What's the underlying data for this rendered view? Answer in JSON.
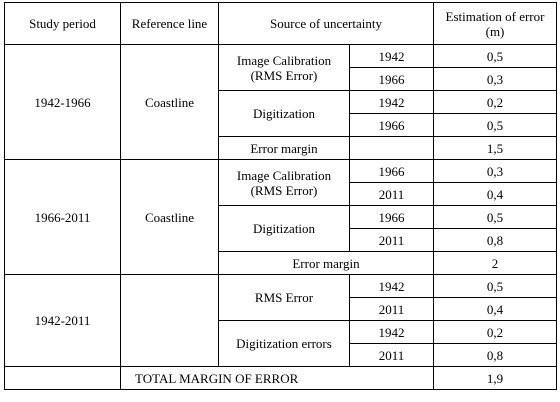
{
  "headers": {
    "study_period": "Study period",
    "reference_line": "Reference line",
    "source": "Source of uncertainty",
    "estimation": "Estimation of error (m)"
  },
  "block1": {
    "period": "1942-1966",
    "reference": "Coastline",
    "calib_label": "Image Calibration (RMS Error)",
    "calib": [
      {
        "year": "1942",
        "value": "0,5"
      },
      {
        "year": "1966",
        "value": "0,3"
      }
    ],
    "digit_label": "Digitization",
    "digit": [
      {
        "year": "1942",
        "value": "0,2"
      },
      {
        "year": "1966",
        "value": "0,5"
      }
    ],
    "margin_label": "Error margin",
    "margin_value": "1,5"
  },
  "block2": {
    "period": "1966-2011",
    "reference": "Coastline",
    "calib_label": "Image Calibration (RMS Error)",
    "calib": [
      {
        "year": "1966",
        "value": "0,3"
      },
      {
        "year": "2011",
        "value": "0,4"
      }
    ],
    "digit_label": "Digitization",
    "digit": [
      {
        "year": "1966",
        "value": "0,5"
      },
      {
        "year": "2011",
        "value": "0,8"
      }
    ],
    "margin_label": "Error margin",
    "margin_value": "2"
  },
  "block3": {
    "period": "1942-2011",
    "rms_label": "RMS Error",
    "rms": [
      {
        "year": "1942",
        "value": "0,5"
      },
      {
        "year": "2011",
        "value": "0,4"
      }
    ],
    "digit_label": "Digitization errors",
    "digit": [
      {
        "year": "1942",
        "value": "0,2"
      },
      {
        "year": "2011",
        "value": "0,8"
      }
    ],
    "total_label": "TOTAL MARGIN OF ERROR",
    "total_value": "1,9"
  }
}
